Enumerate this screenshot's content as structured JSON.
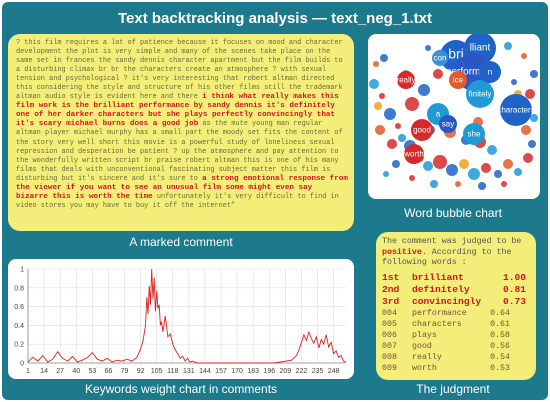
{
  "title": "Text  backtracking  analysis — text_neg_1.txt",
  "comment": {
    "caption": "A marked comment",
    "segments": [
      {
        "text": "? this film requires a lot of patience because it focuses on mood and character development the plot is very simple and many of the scenes take place on the same set in frances the sandy dennis character apartment but the film builds to a disturbing climax br br the characters create an atmosphere ? with sexual tension and psychological ? it's very interesting that robert altman directed this considering the style and structure of his other films still the trademark altman audio style is evident here and there ",
        "hl": false
      },
      {
        "text": "i think what really makes this film work is the brilliant performance by sandy dennis it's definitely one of her darker characters but she plays perfectly convincingly that it's scary michael burns does a good job",
        "hl": true
      },
      {
        "text": " as the mute young man regular altman player michael murphy has a small part the moody set fits the content of the story very well short this movie is a powerful study of loneliness sexual repression and desperation be patient ? up the atmosphere and pay attention to the wonderfully written script br praise robert altman this is one of his many films that deals with unconventional fascinating subject matter this film is disturbing but it's sincere and it's sure to ",
        "hl": false
      },
      {
        "text": "a strong emotional response from the viewer if you want to see an unusual film some might even say bizarre this is worth the time",
        "hl": true
      },
      {
        "text": " unfortunately it's very difficult to find in video stores you may have to buy it off the internet”",
        "hl": false
      }
    ]
  },
  "bubbles": {
    "caption": "Word bubble chart",
    "items": [
      {
        "word": "bri",
        "color": "#1f63c8"
      },
      {
        "word": "lliant",
        "color": "#1f63c8"
      },
      {
        "word": "performance",
        "color": "#2a56c8"
      },
      {
        "word": "con",
        "color": "#3a8fd6"
      },
      {
        "word": "finitely",
        "color": "#1f9ad6"
      },
      {
        "word": "really",
        "color": "#d42a2a"
      },
      {
        "word": "ice",
        "color": "#e05a2a"
      },
      {
        "word": "characters",
        "color": "#1f63c8"
      },
      {
        "word": "good",
        "color": "#d42a2a"
      },
      {
        "word": "a",
        "color": "#1f9ad6"
      },
      {
        "word": "say",
        "color": "#2a56c8"
      },
      {
        "word": "worth",
        "color": "#d42a2a"
      },
      {
        "word": "she",
        "color": "#1f9ad6"
      },
      {
        "word": "n",
        "color": "#1f63c8"
      }
    ]
  },
  "chart": {
    "caption": "Keywords weight chart in comments",
    "x_ticks": [
      "1",
      "14",
      "27",
      "40",
      "53",
      "66",
      "79",
      "92",
      "105",
      "118",
      "131",
      "144",
      "157",
      "170",
      "183",
      "196",
      "209",
      "222",
      "235",
      "248"
    ],
    "y_ticks": [
      "1",
      "0.8",
      "0.6",
      "0.4",
      "0.2",
      "0"
    ]
  },
  "chart_data": {
    "type": "line",
    "title": "",
    "xlabel": "",
    "ylabel": "",
    "xlim": [
      1,
      258
    ],
    "ylim": [
      0,
      1
    ],
    "color": "#e02020",
    "x": [
      1,
      5,
      9,
      13,
      17,
      21,
      25,
      29,
      33,
      37,
      41,
      45,
      49,
      53,
      57,
      61,
      65,
      69,
      73,
      77,
      81,
      85,
      89,
      92,
      94,
      96,
      97,
      98,
      99,
      100,
      101,
      102,
      103,
      104,
      105,
      106,
      107,
      108,
      109,
      110,
      112,
      114,
      116,
      118,
      120,
      122,
      124,
      126,
      128,
      130,
      132,
      134,
      138,
      150,
      170,
      200,
      214,
      218,
      220,
      222,
      224,
      226,
      228,
      230,
      232,
      234,
      236,
      238,
      240,
      242,
      244,
      246,
      248,
      250,
      252,
      254,
      256,
      258
    ],
    "y": [
      0.01,
      0.06,
      0.02,
      0.08,
      0.01,
      0.04,
      0.12,
      0.05,
      0.02,
      0.07,
      0.01,
      0.03,
      0.06,
      0.11,
      0.04,
      0.02,
      0.05,
      0.01,
      0.03,
      0.02,
      0.04,
      0.02,
      0.06,
      0.15,
      0.24,
      0.4,
      0.7,
      0.52,
      0.82,
      0.62,
      1.0,
      0.68,
      0.91,
      0.55,
      0.77,
      0.58,
      0.62,
      0.4,
      0.44,
      0.33,
      0.5,
      0.28,
      0.31,
      0.2,
      0.14,
      0.1,
      0.05,
      0.07,
      0.02,
      0.05,
      0.01,
      0.02,
      0.0,
      0.0,
      0.0,
      0.0,
      0.03,
      0.08,
      0.14,
      0.22,
      0.3,
      0.24,
      0.33,
      0.26,
      0.21,
      0.28,
      0.16,
      0.25,
      0.2,
      0.3,
      0.17,
      0.22,
      0.1,
      0.13,
      0.06,
      0.08,
      0.02,
      0.01
    ]
  },
  "judgment": {
    "caption": "The judgment",
    "intro_before": "The comment was judged to be ",
    "label": "positive",
    "intro_after": ". According to the following words :",
    "rows": [
      {
        "rank": "1st",
        "word": "brilliant",
        "score": "1.00"
      },
      {
        "rank": "2nd",
        "word": "definitely",
        "score": "0.81"
      },
      {
        "rank": "3rd",
        "word": "convincingly",
        "score": "0.73"
      },
      {
        "rank": "004",
        "word": "performance",
        "score": "0.64"
      },
      {
        "rank": "005",
        "word": "characters",
        "score": "0.61"
      },
      {
        "rank": "006",
        "word": "plays",
        "score": "0.58"
      },
      {
        "rank": "007",
        "word": "good",
        "score": "0.56"
      },
      {
        "rank": "008",
        "word": "really",
        "score": "0.54"
      },
      {
        "rank": "009",
        "word": "worth",
        "score": "0.53"
      },
      {
        "rank": "010",
        "word": "she",
        "score": "0.51"
      }
    ]
  }
}
